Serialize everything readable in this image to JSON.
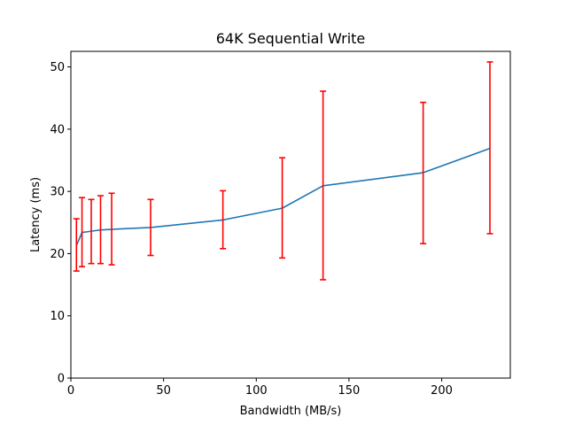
{
  "chart_data": {
    "type": "line",
    "title": "64K  Sequential Write",
    "xlabel": "Bandwidth (MB/s)",
    "ylabel": "Latency (ms)",
    "xlim": [
      0,
      237
    ],
    "ylim": [
      0,
      52.5
    ],
    "xticks": [
      0,
      50,
      100,
      150,
      200
    ],
    "yticks": [
      0,
      10,
      20,
      30,
      40,
      50
    ],
    "grid": false,
    "series": [
      {
        "name": "Latency",
        "color": "#1f77b4",
        "x": [
          3,
          6,
          11,
          16,
          22,
          43,
          82,
          114,
          136,
          190,
          226
        ],
        "y": [
          21.3,
          23.4,
          23.6,
          23.8,
          23.9,
          24.2,
          25.4,
          27.3,
          30.9,
          33.0,
          36.9
        ],
        "err_low": [
          17.2,
          17.9,
          18.4,
          18.4,
          18.2,
          19.7,
          20.8,
          19.3,
          15.8,
          21.6,
          23.2
        ],
        "err_high": [
          25.6,
          29.0,
          28.7,
          29.3,
          29.7,
          28.7,
          30.1,
          35.4,
          46.1,
          44.3,
          50.8
        ],
        "err_color": "#ff0000"
      }
    ]
  }
}
